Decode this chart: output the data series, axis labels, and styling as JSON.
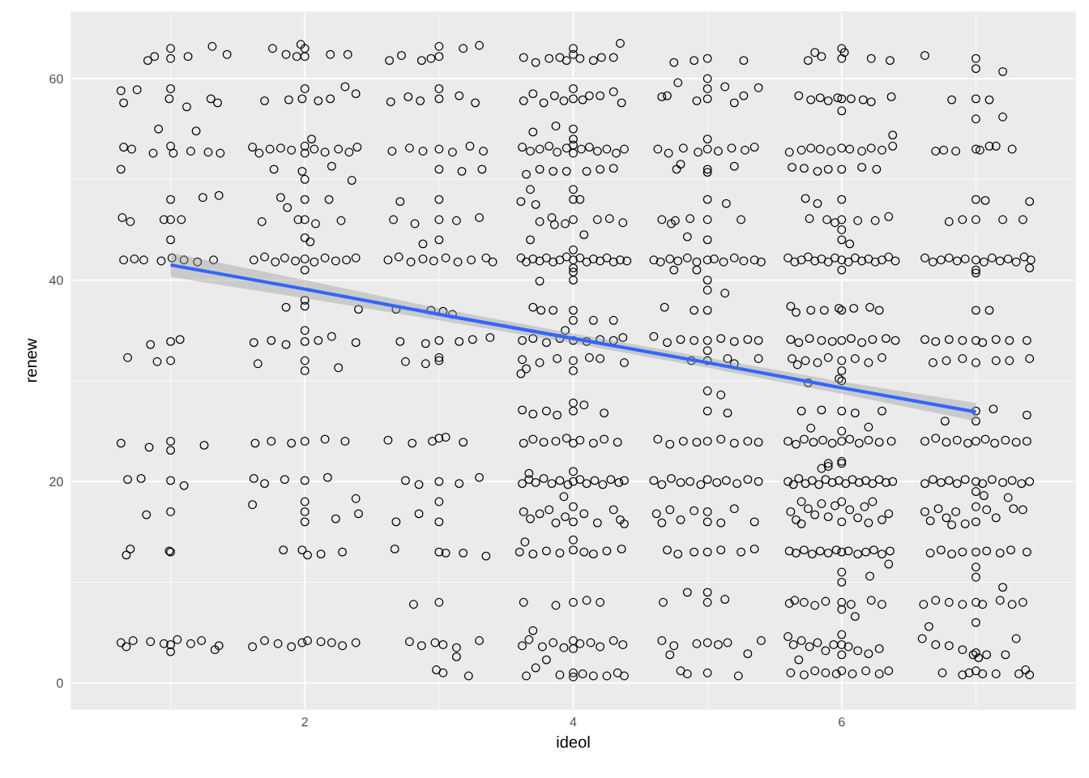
{
  "chart_data": {
    "type": "scatter",
    "xlabel": "ideol",
    "ylabel": "renew",
    "xlim": [
      0.26,
      7.74
    ],
    "ylim": [
      -2.6,
      66.6
    ],
    "xticks": [
      2,
      4,
      6
    ],
    "yticks": [
      0,
      20,
      40,
      60
    ],
    "grid": true,
    "series": [
      {
        "color": "#000000",
        "marker": "circle",
        "x": [
          0.83,
          0.88,
          1.0,
          1.0,
          1.13,
          1.31,
          1.42,
          0.63,
          0.65,
          0.75,
          0.99,
          1.0,
          1.12,
          1.3,
          1.35,
          0.65,
          0.71,
          0.87,
          1.0,
          1.02,
          1.15,
          1.28,
          1.37,
          0.63,
          0.91,
          1.19,
          0.64,
          0.7,
          0.95,
          1.0,
          1.0,
          1.08,
          1.24,
          1.36,
          1.0,
          0.65,
          0.73,
          0.8,
          0.93,
          1.01,
          1.1,
          1.2,
          1.32,
          0.68,
          0.85,
          0.9,
          1.0,
          1.0,
          1.07,
          0.63,
          0.84,
          1.0,
          1.0,
          1.25,
          0.68,
          0.78,
          1.0,
          1.1,
          0.82,
          1.0,
          0.7,
          0.67,
          0.99,
          1.0,
          0.63,
          0.67,
          0.72,
          0.85,
          0.95,
          1.0,
          1.0,
          1.05,
          1.15,
          1.23,
          1.33,
          1.36,
          1.76,
          1.86,
          1.94,
          2.0,
          2.0,
          2.19,
          2.32,
          1.97,
          1.7,
          1.88,
          1.98,
          2.0,
          2.1,
          2.19,
          2.3,
          2.38,
          1.61,
          1.66,
          1.74,
          1.82,
          1.9,
          2.0,
          2.0,
          2.07,
          2.15,
          2.25,
          2.33,
          2.39,
          1.77,
          1.98,
          2.0,
          2.2,
          2.35,
          2.05,
          1.68,
          1.82,
          1.87,
          1.95,
          2.0,
          2.0,
          2.08,
          2.18,
          2.27,
          2.0,
          2.04,
          1.62,
          1.7,
          1.78,
          1.85,
          1.93,
          2.0,
          2.07,
          2.15,
          2.23,
          2.31,
          2.38,
          2.0,
          1.86,
          2.0,
          2.0,
          2.4,
          1.62,
          1.75,
          1.86,
          2.0,
          2.0,
          2.1,
          2.2,
          2.38,
          1.65,
          2.0,
          2.0,
          2.25,
          1.63,
          1.75,
          1.9,
          2.0,
          2.15,
          2.3,
          1.62,
          1.7,
          1.85,
          2.0,
          2.0,
          2.0,
          2.0,
          2.17,
          2.23,
          2.38,
          1.61,
          2.4,
          1.84,
          1.98,
          2.02,
          2.12,
          2.28,
          1.61,
          1.7,
          1.8,
          1.9,
          1.98,
          2.02,
          2.12,
          2.2,
          2.28,
          2.38,
          2.63,
          2.72,
          2.87,
          2.94,
          3.0,
          3.0,
          3.18,
          3.3,
          2.64,
          2.77,
          2.86,
          3.0,
          3.0,
          3.15,
          3.27,
          2.65,
          2.78,
          2.88,
          3.0,
          3.1,
          3.23,
          3.33,
          3.0,
          3.17,
          3.32,
          2.66,
          2.71,
          2.82,
          3.0,
          3.0,
          3.0,
          3.13,
          3.3,
          2.88,
          2.62,
          2.7,
          2.79,
          2.88,
          2.96,
          3.05,
          3.14,
          3.24,
          3.35,
          3.4,
          2.68,
          2.94,
          3.03,
          3.1,
          2.71,
          2.9,
          3.0,
          3.15,
          3.25,
          3.38,
          2.75,
          2.9,
          3.0,
          3.0,
          2.62,
          2.8,
          2.95,
          3.0,
          3.05,
          3.18,
          2.75,
          2.85,
          3.0,
          3.0,
          3.0,
          3.15,
          3.3,
          2.68,
          2.85,
          2.67,
          3.0,
          3.05,
          3.18,
          3.35,
          2.81,
          3.0,
          2.78,
          2.87,
          2.97,
          3.03,
          3.13,
          3.3,
          2.98,
          3.03,
          3.13,
          3.22,
          3.63,
          3.72,
          3.82,
          3.9,
          3.95,
          4.0,
          4.0,
          4.05,
          4.15,
          4.21,
          4.3,
          4.35,
          3.63,
          3.7,
          3.78,
          3.86,
          3.93,
          4.0,
          4.0,
          4.07,
          4.12,
          4.2,
          4.3,
          4.36,
          3.62,
          3.68,
          3.75,
          3.82,
          3.88,
          3.95,
          4.0,
          4.0,
          4.06,
          4.12,
          4.18,
          4.25,
          4.32,
          4.38,
          3.7,
          3.87,
          4.0,
          4.0,
          3.65,
          3.75,
          3.85,
          3.95,
          4.1,
          4.2,
          4.3,
          3.61,
          3.68,
          3.72,
          3.75,
          3.84,
          3.94,
          4.0,
          4.0,
          4.0,
          4.05,
          4.08,
          4.18,
          4.27,
          4.37,
          3.68,
          3.86,
          3.61,
          3.65,
          3.7,
          3.75,
          3.8,
          3.85,
          3.9,
          3.95,
          4.0,
          4.0,
          4.0,
          4.05,
          4.1,
          4.15,
          4.2,
          4.25,
          4.3,
          4.35,
          4.4,
          3.75,
          4.0,
          4.0,
          3.7,
          3.76,
          3.85,
          4.0,
          4.0,
          3.94,
          4.15,
          4.3,
          3.62,
          3.7,
          3.8,
          3.9,
          4.0,
          4.1,
          4.2,
          4.3,
          4.37,
          3.62,
          3.65,
          3.75,
          3.88,
          4.0,
          4.0,
          4.12,
          4.2,
          4.38,
          3.61,
          3.62,
          3.7,
          3.8,
          3.88,
          4.0,
          4.0,
          4.08,
          4.23,
          3.63,
          3.7,
          3.78,
          3.87,
          3.95,
          4.0,
          4.05,
          4.15,
          4.23,
          4.33,
          3.62,
          3.67,
          3.72,
          3.78,
          3.84,
          3.9,
          3.96,
          4.0,
          4.0,
          4.05,
          4.1,
          4.16,
          4.22,
          4.28,
          4.34,
          4.38,
          3.67,
          3.93,
          3.63,
          3.68,
          3.75,
          3.82,
          3.87,
          3.94,
          4.0,
          4.0,
          4.08,
          4.18,
          4.3,
          4.35,
          4.38,
          3.6,
          3.64,
          3.7,
          3.8,
          3.9,
          4.0,
          4.0,
          4.08,
          4.15,
          4.25,
          4.36,
          3.63,
          3.87,
          4.0,
          4.1,
          4.2,
          3.62,
          3.67,
          3.7,
          3.77,
          3.85,
          3.93,
          4.0,
          4.0,
          4.05,
          4.13,
          4.2,
          4.3,
          4.37,
          3.72,
          3.8,
          3.9,
          4.0,
          4.0,
          4.07,
          4.15,
          4.25,
          4.33,
          4.38,
          3.65,
          4.75,
          4.9,
          5.0,
          5.27,
          4.66,
          4.7,
          4.78,
          4.92,
          5.0,
          5.0,
          5.0,
          5.13,
          5.2,
          5.27,
          5.38,
          4.63,
          4.71,
          4.82,
          4.93,
          5.0,
          5.0,
          5.08,
          5.18,
          5.28,
          5.35,
          4.77,
          5.0,
          5.0,
          5.2,
          4.8,
          4.66,
          4.76,
          4.87,
          5.0,
          5.0,
          5.14,
          5.25,
          4.85,
          5.0,
          4.73,
          4.6,
          4.65,
          4.72,
          4.78,
          4.85,
          4.92,
          5.0,
          5.05,
          5.12,
          5.2,
          5.27,
          5.35,
          5.4,
          4.75,
          5.0,
          4.92,
          4.68,
          4.9,
          5.0,
          5.0,
          5.13,
          4.6,
          4.7,
          4.8,
          4.9,
          5.0,
          5.0,
          5.1,
          5.2,
          5.3,
          5.38,
          4.88,
          5.0,
          5.15,
          5.2,
          5.38,
          5.0,
          5.0,
          5.1,
          5.15,
          4.63,
          4.72,
          4.82,
          4.92,
          5.0,
          5.1,
          5.2,
          5.3,
          5.38,
          4.6,
          4.66,
          4.73,
          4.8,
          4.87,
          4.95,
          5.0,
          5.07,
          5.14,
          5.22,
          5.3,
          5.38,
          4.62,
          4.66,
          4.72,
          4.8,
          4.9,
          5.0,
          5.0,
          5.1,
          5.2,
          5.35,
          4.7,
          4.78,
          4.9,
          5.0,
          5.1,
          5.25,
          5.35,
          4.67,
          4.85,
          5.0,
          5.0,
          5.13,
          4.66,
          4.75,
          4.8,
          4.85,
          4.92,
          5.0,
          5.0,
          5.08,
          5.15,
          5.23,
          5.3,
          5.4,
          4.72,
          5.75,
          5.8,
          5.85,
          6.0,
          6.0,
          6.02,
          6.22,
          6.36,
          5.68,
          5.77,
          5.84,
          5.9,
          5.97,
          6.0,
          6.07,
          6.16,
          6.22,
          6.37,
          6.0,
          5.61,
          5.7,
          5.77,
          5.84,
          5.92,
          6.0,
          6.06,
          6.15,
          6.22,
          6.3,
          6.38,
          6.38,
          5.63,
          5.72,
          5.82,
          5.9,
          6.0,
          6.15,
          6.26,
          5.73,
          5.76,
          5.82,
          5.89,
          5.95,
          6.0,
          6.0,
          6.0,
          6.12,
          6.25,
          6.35,
          6.0,
          6.06,
          5.6,
          5.65,
          5.7,
          5.75,
          5.8,
          5.85,
          5.9,
          5.95,
          6.0,
          6.05,
          6.1,
          6.15,
          6.2,
          6.25,
          6.3,
          6.35,
          6.4,
          6.0,
          5.62,
          5.66,
          5.77,
          5.87,
          5.98,
          6.0,
          6.09,
          6.21,
          6.28,
          5.62,
          5.68,
          5.76,
          5.85,
          5.93,
          6.0,
          6.07,
          6.15,
          6.23,
          6.33,
          6.4,
          5.63,
          5.67,
          5.73,
          5.82,
          5.9,
          6.0,
          6.0,
          6.1,
          6.2,
          6.3,
          5.98,
          5.75,
          6.0,
          5.7,
          5.77,
          5.85,
          6.0,
          6.0,
          6.1,
          6.2,
          6.3,
          5.6,
          5.66,
          5.72,
          5.79,
          5.86,
          5.93,
          6.0,
          6.06,
          6.13,
          6.2,
          6.28,
          6.37,
          5.9,
          5.6,
          5.64,
          5.68,
          5.73,
          5.78,
          5.83,
          5.88,
          5.93,
          5.98,
          6.0,
          6.0,
          6.03,
          6.08,
          6.13,
          6.18,
          6.23,
          6.28,
          6.33,
          6.38,
          5.85,
          5.9,
          5.62,
          5.66,
          5.7,
          5.75,
          5.8,
          5.85,
          5.9,
          5.95,
          6.0,
          6.0,
          6.06,
          6.12,
          6.17,
          6.23,
          6.3,
          6.35,
          5.7,
          6.2,
          5.61,
          5.66,
          5.72,
          5.78,
          5.84,
          5.9,
          5.96,
          6.0,
          6.0,
          6.0,
          6.05,
          6.12,
          6.18,
          6.24,
          6.3,
          6.36,
          6.35,
          6.21,
          5.61,
          5.65,
          5.72,
          5.8,
          5.88,
          6.0,
          6.0,
          6.07,
          6.1,
          6.22,
          6.3,
          5.6,
          5.64,
          5.7,
          5.76,
          5.82,
          5.88,
          5.94,
          6.0,
          6.0,
          6.0,
          6.05,
          6.12,
          6.2,
          6.28,
          5.62,
          5.72,
          5.8,
          5.88,
          5.96,
          6.0,
          6.08,
          6.18,
          6.28,
          6.35,
          5.68,
          6.62,
          7.0,
          7.0,
          7.2,
          6.82,
          7.0,
          7.0,
          7.1,
          7.2,
          6.7,
          6.76,
          6.85,
          7.0,
          7.03,
          7.1,
          7.15,
          7.27,
          6.8,
          6.9,
          7.0,
          7.0,
          7.07,
          7.2,
          7.35,
          7.4,
          6.62,
          6.68,
          6.74,
          6.8,
          6.86,
          6.92,
          7.0,
          7.0,
          7.06,
          7.12,
          7.18,
          7.24,
          7.3,
          7.36,
          7.41,
          7.0,
          7.4,
          7.0,
          7.1,
          6.62,
          6.7,
          6.8,
          6.9,
          7.0,
          7.05,
          7.15,
          7.25,
          7.38,
          6.68,
          6.78,
          6.9,
          7.0,
          7.15,
          7.25,
          7.4,
          6.77,
          7.0,
          7.0,
          7.13,
          7.38,
          6.62,
          6.7,
          6.78,
          6.86,
          6.94,
          7.0,
          7.07,
          7.14,
          7.22,
          7.3,
          7.38,
          6.62,
          6.68,
          6.74,
          6.8,
          6.86,
          6.92,
          7.0,
          7.0,
          7.05,
          7.12,
          7.2,
          7.27,
          7.34,
          7.4,
          7.24,
          7.06,
          6.62,
          6.66,
          6.72,
          6.78,
          6.85,
          6.92,
          7.0,
          7.0,
          7.08,
          7.15,
          7.28,
          7.35,
          6.82,
          6.66,
          6.74,
          6.82,
          6.9,
          7.0,
          7.0,
          7.0,
          7.08,
          7.18,
          7.26,
          7.38,
          7.2,
          6.61,
          6.7,
          6.8,
          6.9,
          7.0,
          7.0,
          7.05,
          7.18,
          7.27,
          7.35,
          6.6,
          6.65,
          6.7,
          6.8,
          6.9,
          6.98,
          7.0,
          7.02,
          7.08,
          7.3,
          7.22,
          6.75,
          6.9,
          6.95,
          7.0,
          7.05,
          7.15,
          7.32,
          7.37,
          7.4
        ],
        "values": [
          61.8,
          62.2,
          63.0,
          62.0,
          62.2,
          63.2,
          62.4,
          58.8,
          57.6,
          58.9,
          58.0,
          59.0,
          57.2,
          58.0,
          57.6,
          53.2,
          53.0,
          52.6,
          53.3,
          52.6,
          52.8,
          52.7,
          52.6,
          51.0,
          55.0,
          54.8,
          46.2,
          45.8,
          46.0,
          48.0,
          46.0,
          46.0,
          48.2,
          48.4,
          44.0,
          42.0,
          42.1,
          42.0,
          41.9,
          42.2,
          42.0,
          41.8,
          42.0,
          32.3,
          33.6,
          31.9,
          33.9,
          32.0,
          34.1,
          23.8,
          23.4,
          24.0,
          23.1,
          23.6,
          20.2,
          20.3,
          20.1,
          19.6,
          16.7,
          17.0,
          13.3,
          12.7,
          13.1,
          13.0,
          4.0,
          3.6,
          4.2,
          4.1,
          3.9,
          3.1,
          3.8,
          4.3,
          3.9,
          4.2,
          3.3,
          3.7,
          63.0,
          62.4,
          62.2,
          63.0,
          62.2,
          62.4,
          62.4,
          63.4,
          57.8,
          57.9,
          58.0,
          59.0,
          57.8,
          58.0,
          59.2,
          58.5,
          53.2,
          52.6,
          53.0,
          53.1,
          52.9,
          53.3,
          52.6,
          53.0,
          52.7,
          53.0,
          52.7,
          53.2,
          51.0,
          50.8,
          50.0,
          51.3,
          49.9,
          54.0,
          45.8,
          48.2,
          47.2,
          46.0,
          48.0,
          46.0,
          45.6,
          48.0,
          45.9,
          44.2,
          43.8,
          42.0,
          42.3,
          41.8,
          42.2,
          41.9,
          42.1,
          41.8,
          42.2,
          41.9,
          42.0,
          42.2,
          41.0,
          37.3,
          38.0,
          37.4,
          37.1,
          33.8,
          34.0,
          33.6,
          35.0,
          33.9,
          34.0,
          34.4,
          33.8,
          31.7,
          32.0,
          31.0,
          31.3,
          23.8,
          24.0,
          23.8,
          24.0,
          24.2,
          24.0,
          20.3,
          19.8,
          20.2,
          20.1,
          18.0,
          17.0,
          16.0,
          20.4,
          16.3,
          18.3,
          17.7,
          16.8,
          13.2,
          13.2,
          12.7,
          12.8,
          13.0,
          3.6,
          4.2,
          3.9,
          3.6,
          4.0,
          4.2,
          4.1,
          4.0,
          3.7,
          4.0,
          61.8,
          62.3,
          61.8,
          62.0,
          63.2,
          62.2,
          63.0,
          63.3,
          57.7,
          58.2,
          57.8,
          59.0,
          58.0,
          58.3,
          57.6,
          52.8,
          53.1,
          52.8,
          53.0,
          52.7,
          53.3,
          52.8,
          51.0,
          50.8,
          51.0,
          46.0,
          47.8,
          45.6,
          48.0,
          46.0,
          44.0,
          45.9,
          46.2,
          43.6,
          42.0,
          42.3,
          41.8,
          42.1,
          41.9,
          42.2,
          41.8,
          42.0,
          42.2,
          41.8,
          37.1,
          37.0,
          36.9,
          36.6,
          33.9,
          33.7,
          34.0,
          33.9,
          34.1,
          34.3,
          31.9,
          31.7,
          32.0,
          32.3,
          24.1,
          23.8,
          24.0,
          24.3,
          24.4,
          23.9,
          20.1,
          19.7,
          20.0,
          18.0,
          16.0,
          19.8,
          20.4,
          16.0,
          16.8,
          13.3,
          13.0,
          12.9,
          12.9,
          12.6,
          7.8,
          8.0,
          4.1,
          3.7,
          4.0,
          3.8,
          3.5,
          4.2,
          1.3,
          1.0,
          2.6,
          0.7,
          62.1,
          61.6,
          62.0,
          62.1,
          61.8,
          63.0,
          62.4,
          62.0,
          61.8,
          62.1,
          62.1,
          63.5,
          57.8,
          58.5,
          57.6,
          58.3,
          57.8,
          59.0,
          58.0,
          57.9,
          58.3,
          58.3,
          58.7,
          57.6,
          53.2,
          52.8,
          53.0,
          53.3,
          52.7,
          53.1,
          53.4,
          52.6,
          53.0,
          53.2,
          52.8,
          53.0,
          52.6,
          53.0,
          54.7,
          55.3,
          55.0,
          54.0,
          50.5,
          51.0,
          50.8,
          50.8,
          50.8,
          51.0,
          51.1,
          47.8,
          49.0,
          47.5,
          45.8,
          46.2,
          45.6,
          49.0,
          48.0,
          46.0,
          48.0,
          44.5,
          46.0,
          46.1,
          45.7,
          44.0,
          45.5,
          42.2,
          41.8,
          42.1,
          41.9,
          42.2,
          41.8,
          42.0,
          42.3,
          42.0,
          41.2,
          40.8,
          42.2,
          41.8,
          42.1,
          41.9,
          42.2,
          41.8,
          42.0,
          41.9,
          39.9,
          43.0,
          40.0,
          37.3,
          37.0,
          37.0,
          37.0,
          36.0,
          35.0,
          36.0,
          36.0,
          34.0,
          34.2,
          33.8,
          34.2,
          34.0,
          33.9,
          34.1,
          34.0,
          34.3,
          32.1,
          31.2,
          31.8,
          32.2,
          32.0,
          31.0,
          32.3,
          32.2,
          31.8,
          30.7,
          27.1,
          26.7,
          27.0,
          26.6,
          27.8,
          27.0,
          27.6,
          26.8,
          23.8,
          24.2,
          23.9,
          24.0,
          24.3,
          23.8,
          24.1,
          23.8,
          24.2,
          23.9,
          19.8,
          20.2,
          19.9,
          20.3,
          19.8,
          20.1,
          19.7,
          21.0,
          20.0,
          20.2,
          19.8,
          20.1,
          19.7,
          20.2,
          19.9,
          20.1,
          20.8,
          18.5,
          17.0,
          16.3,
          16.8,
          17.2,
          15.9,
          16.5,
          17.5,
          16.0,
          16.8,
          15.9,
          17.2,
          16.2,
          15.8,
          13.0,
          14.0,
          12.8,
          13.1,
          12.9,
          13.2,
          14.2,
          13.0,
          12.8,
          13.1,
          13.3,
          8.0,
          7.7,
          8.0,
          8.2,
          8.0,
          3.7,
          4.3,
          5.2,
          3.6,
          4.0,
          3.5,
          4.2,
          3.4,
          3.9,
          4.0,
          3.6,
          4.2,
          3.8,
          1.5,
          2.3,
          0.8,
          1.0,
          0.6,
          0.9,
          0.7,
          0.7,
          1.0,
          0.7,
          0.7,
          61.6,
          61.8,
          62.0,
          61.8,
          58.2,
          58.3,
          59.6,
          57.8,
          60.0,
          59.0,
          58.0,
          59.2,
          57.6,
          58.3,
          59.1,
          53.0,
          52.6,
          53.1,
          52.7,
          53.0,
          54.0,
          52.8,
          53.1,
          52.9,
          53.2,
          51.0,
          51.0,
          50.7,
          51.3,
          51.5,
          46.0,
          45.9,
          46.1,
          48.0,
          46.0,
          47.6,
          46.0,
          44.3,
          44.0,
          45.6,
          42.0,
          41.8,
          42.1,
          41.9,
          42.2,
          41.8,
          42.0,
          42.1,
          41.8,
          42.2,
          41.9,
          42.0,
          41.8,
          41.0,
          40.0,
          41.0,
          37.3,
          37.0,
          39.0,
          37.0,
          38.7,
          34.4,
          33.8,
          34.1,
          34.0,
          34.0,
          33.0,
          34.2,
          33.9,
          34.1,
          34.0,
          32.0,
          32.0,
          32.2,
          31.7,
          32.2,
          29.0,
          27.0,
          28.6,
          26.8,
          24.2,
          23.7,
          24.0,
          23.9,
          24.0,
          24.2,
          23.8,
          24.0,
          23.9,
          20.1,
          19.7,
          20.3,
          19.9,
          20.0,
          19.7,
          20.2,
          19.9,
          20.1,
          19.8,
          20.2,
          20.0,
          16.8,
          15.9,
          17.2,
          16.2,
          17.1,
          17.0,
          16.0,
          15.9,
          17.3,
          16.0,
          13.2,
          12.8,
          13.0,
          13.0,
          13.2,
          13.0,
          13.3,
          8.0,
          9.0,
          9.0,
          8.0,
          8.3,
          4.2,
          3.7,
          1.2,
          0.9,
          3.9,
          4.0,
          1.0,
          3.8,
          4.0,
          0.7,
          2.9,
          4.2,
          2.8,
          61.8,
          62.6,
          62.2,
          63.0,
          62.0,
          62.6,
          62.0,
          61.8,
          58.3,
          57.9,
          58.1,
          57.8,
          58.1,
          58.0,
          58.0,
          57.9,
          57.7,
          58.2,
          56.8,
          52.7,
          52.9,
          53.1,
          53.0,
          52.8,
          53.1,
          53.0,
          52.8,
          53.1,
          52.9,
          53.3,
          54.4,
          51.2,
          51.1,
          50.8,
          51.0,
          51.0,
          51.2,
          51.0,
          48.1,
          46.1,
          47.6,
          46.0,
          45.7,
          48.0,
          46.0,
          45.0,
          45.9,
          45.9,
          46.3,
          44.0,
          43.6,
          42.2,
          41.8,
          42.0,
          42.3,
          41.9,
          42.1,
          41.8,
          42.2,
          42.0,
          41.8,
          42.2,
          41.9,
          42.1,
          41.8,
          42.0,
          42.3,
          41.9,
          41.0,
          37.4,
          36.8,
          37.0,
          37.0,
          37.2,
          37.0,
          37.2,
          37.3,
          37.0,
          34.1,
          33.8,
          34.2,
          34.0,
          33.9,
          34.0,
          34.2,
          33.8,
          34.1,
          34.2,
          34.0,
          32.2,
          31.6,
          32.0,
          31.8,
          32.3,
          32.0,
          31.0,
          32.2,
          31.8,
          32.3,
          30.2,
          29.8,
          30.0,
          27.0,
          25.3,
          27.1,
          27.0,
          25.0,
          26.8,
          25.4,
          27.0,
          24.0,
          23.7,
          24.2,
          23.9,
          24.1,
          23.8,
          24.0,
          24.2,
          23.8,
          24.1,
          23.9,
          24.0,
          21.5,
          20.0,
          19.7,
          20.3,
          19.8,
          20.1,
          19.7,
          20.2,
          19.9,
          20.1,
          21.8,
          22.0,
          19.8,
          20.2,
          19.9,
          20.1,
          19.8,
          20.2,
          19.9,
          20.0,
          21.3,
          21.8,
          17.0,
          16.2,
          18.0,
          17.3,
          16.7,
          17.8,
          16.5,
          17.6,
          18.0,
          16.0,
          17.2,
          16.4,
          17.5,
          18.0,
          16.2,
          16.8,
          15.8,
          15.9,
          13.1,
          12.9,
          13.2,
          12.8,
          13.1,
          12.9,
          13.2,
          13.0,
          11.0,
          10.0,
          13.1,
          12.8,
          13.0,
          13.2,
          12.8,
          13.1,
          11.8,
          10.6,
          7.9,
          8.2,
          8.0,
          7.7,
          8.1,
          8.0,
          7.3,
          7.8,
          6.6,
          8.2,
          7.8,
          4.6,
          3.8,
          4.2,
          3.6,
          4.0,
          3.2,
          3.8,
          4.8,
          3.8,
          2.8,
          3.6,
          3.2,
          2.9,
          3.4,
          1.0,
          0.8,
          1.2,
          1.0,
          0.9,
          1.2,
          0.9,
          1.2,
          0.9,
          1.2,
          2.3,
          62.3,
          62.0,
          61.0,
          60.7,
          57.9,
          58.0,
          56.0,
          57.9,
          56.2,
          52.8,
          52.9,
          52.8,
          53.0,
          52.9,
          53.3,
          53.3,
          53.0,
          45.8,
          46.0,
          48.0,
          46.0,
          47.9,
          46.0,
          46.0,
          47.8,
          42.2,
          41.8,
          42.0,
          42.2,
          41.9,
          42.1,
          42.0,
          41.0,
          41.8,
          42.2,
          41.9,
          42.1,
          41.8,
          42.3,
          42.0,
          40.7,
          41.2,
          37.0,
          37.0,
          34.1,
          33.9,
          34.1,
          34.0,
          34.0,
          33.8,
          34.1,
          34.0,
          34.0,
          31.8,
          32.0,
          32.2,
          31.8,
          32.0,
          32.0,
          32.2,
          26.0,
          27.0,
          26.0,
          27.2,
          26.6,
          24.0,
          24.3,
          23.9,
          24.1,
          23.8,
          24.0,
          24.2,
          23.8,
          24.1,
          23.9,
          24.0,
          19.8,
          20.2,
          19.9,
          20.1,
          19.8,
          20.2,
          20.0,
          19.0,
          19.8,
          20.2,
          19.9,
          20.1,
          19.8,
          20.0,
          18.4,
          18.6,
          17.0,
          16.1,
          17.3,
          16.4,
          17.0,
          15.8,
          17.5,
          16.0,
          17.2,
          16.4,
          17.3,
          17.2,
          15.7,
          12.9,
          13.2,
          12.8,
          13.0,
          13.0,
          11.5,
          10.5,
          13.1,
          12.9,
          13.2,
          13.0,
          9.5,
          7.8,
          8.2,
          8.0,
          7.8,
          8.0,
          6.0,
          7.8,
          8.2,
          7.8,
          8.0,
          4.4,
          5.6,
          3.8,
          3.7,
          3.3,
          2.8,
          3.0,
          2.5,
          2.8,
          4.4,
          2.8,
          1.0,
          0.8,
          1.0,
          1.2,
          0.9,
          0.9,
          0.9,
          1.3,
          0.8
        ]
      },
      {
        "type": "line",
        "color": "#3366ff",
        "line_style": "solid",
        "x": [
          1,
          2,
          3,
          4,
          5,
          6,
          7
        ],
        "values": [
          41.5,
          39.1,
          36.6,
          34.2,
          31.8,
          29.3,
          26.9
        ],
        "lower": [
          40.3,
          38.2,
          36.0,
          33.7,
          31.3,
          28.7,
          26.0
        ],
        "upper": [
          42.7,
          40.0,
          37.2,
          34.7,
          32.3,
          29.9,
          27.8
        ]
      }
    ]
  }
}
